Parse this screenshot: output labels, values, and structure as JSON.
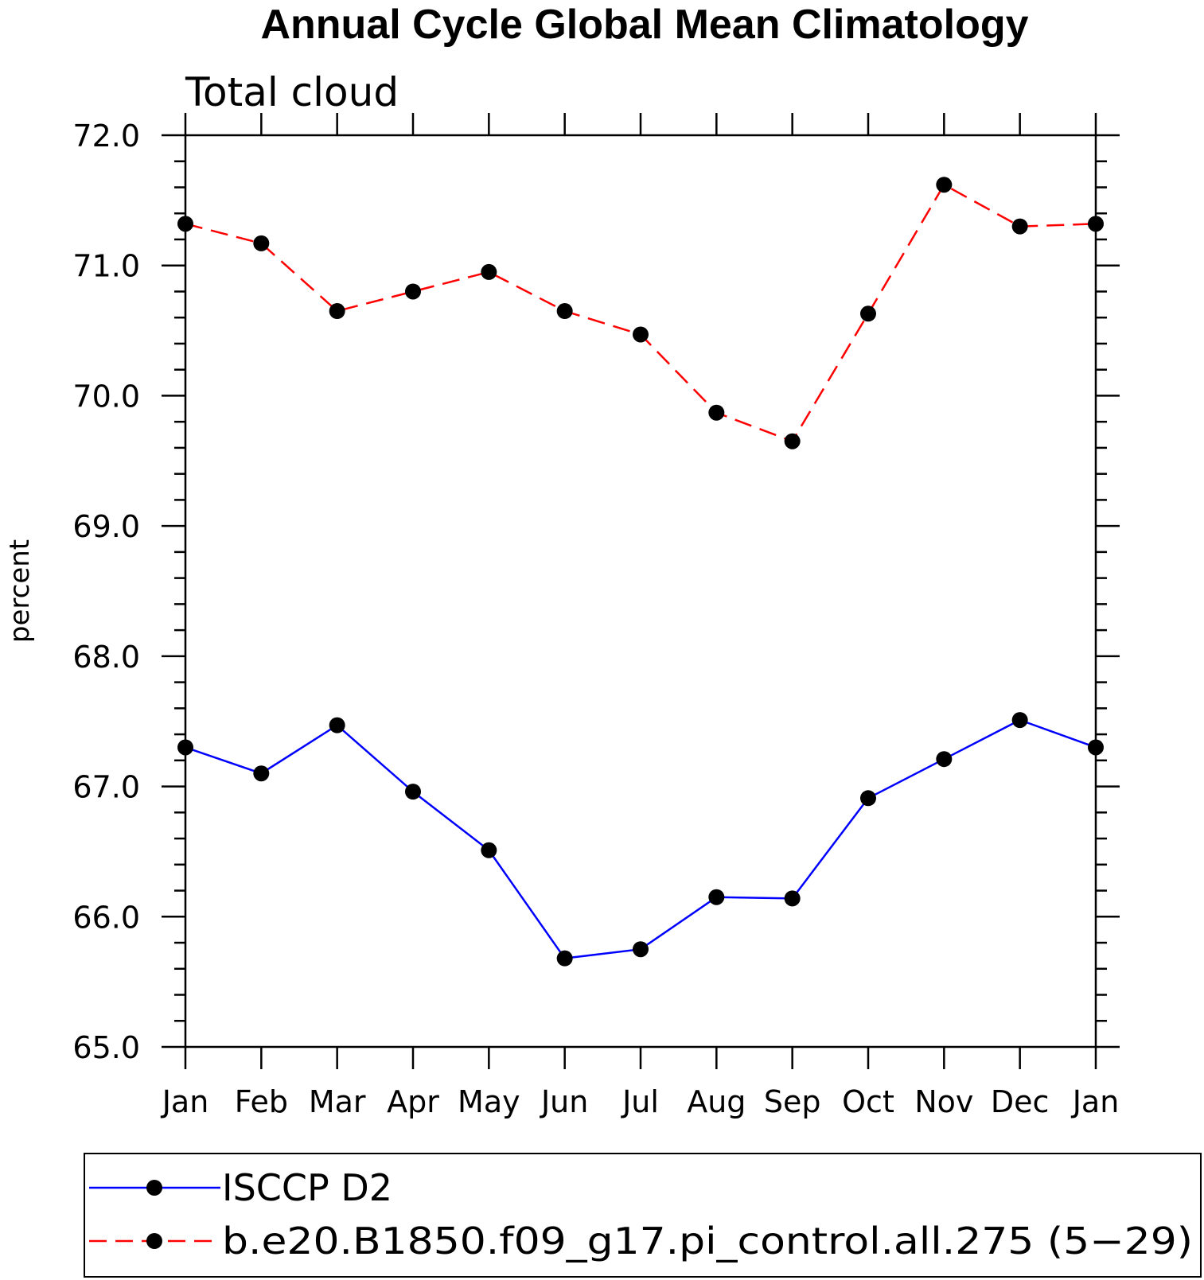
{
  "chart_data": {
    "type": "line",
    "title": "Annual Cycle Global Mean Climatology",
    "subtitle": "Total cloud",
    "xlabel": "",
    "ylabel": "percent",
    "categories": [
      "Jan",
      "Feb",
      "Mar",
      "Apr",
      "May",
      "Jun",
      "Jul",
      "Aug",
      "Sep",
      "Oct",
      "Nov",
      "Dec",
      "Jan"
    ],
    "ylim": [
      65.0,
      72.0
    ],
    "yticks": [
      "65.0",
      "66.0",
      "67.0",
      "68.0",
      "69.0",
      "70.0",
      "71.0",
      "72.0"
    ],
    "grid": false,
    "legend_position": "bottom",
    "series": [
      {
        "name": "ISCCP D2",
        "color": "#0000ff",
        "line_style": "solid",
        "marker": "filled-circle",
        "values": [
          67.3,
          67.1,
          67.47,
          66.96,
          66.51,
          65.68,
          65.75,
          66.15,
          66.14,
          66.91,
          67.21,
          67.51,
          67.3
        ]
      },
      {
        "name": "b.e20.B1850.f09_g17.pi_control.all.275 (5−29)",
        "color": "#ff0000",
        "line_style": "dashed",
        "marker": "filled-circle",
        "values": [
          71.32,
          71.17,
          70.65,
          70.8,
          70.95,
          70.65,
          70.47,
          69.87,
          69.65,
          70.63,
          71.62,
          71.3,
          71.32
        ]
      }
    ]
  }
}
